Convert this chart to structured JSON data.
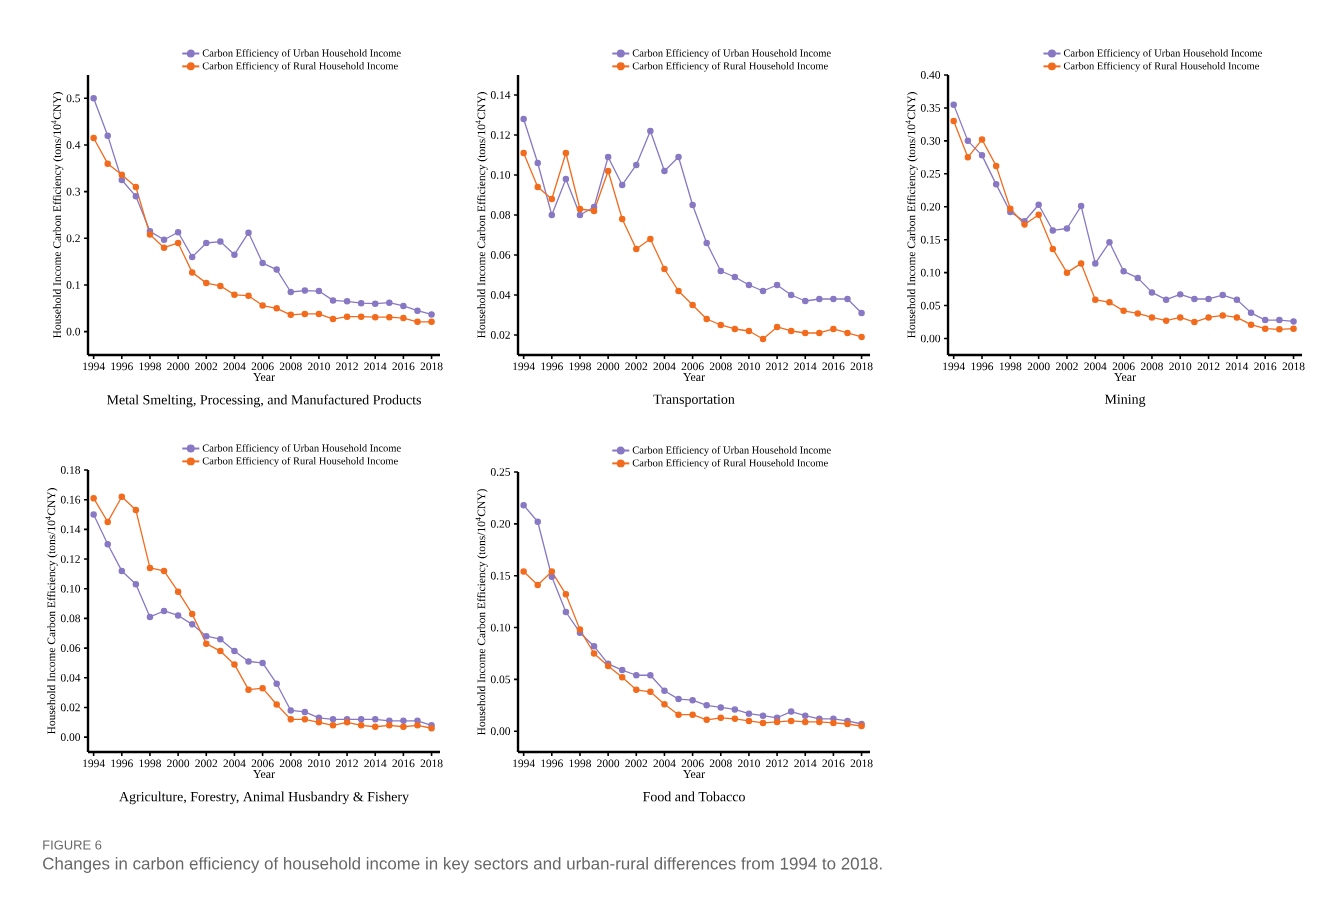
{
  "chart_data": [
    {
      "type": "line",
      "title": "Metal Smelting, Processing, and Manufactured Products",
      "xlabel": "Year",
      "ylabel": "Household Income Carbon Efficiency  (tons/10$^{4}$CNY)",
      "x": [
        1994,
        1995,
        1996,
        1997,
        1998,
        1999,
        2000,
        2001,
        2002,
        2003,
        2004,
        2005,
        2006,
        2007,
        2008,
        2009,
        2010,
        2011,
        2012,
        2013,
        2014,
        2015,
        2016,
        2017,
        2018
      ],
      "xlim": [
        1993.6,
        2018.6
      ],
      "xticks": [
        1994,
        1996,
        1998,
        2000,
        2002,
        2004,
        2006,
        2008,
        2010,
        2012,
        2014,
        2016,
        2018
      ],
      "ylim": [
        -0.05,
        0.55
      ],
      "yticks": [
        {
          "value": 0,
          "label": "0.0"
        },
        0.1,
        0.2,
        0.3,
        0.4,
        0.5
      ],
      "series": [
        {
          "name": "Carbon Efficiency of Urban Household Income",
          "color": "#8878c3",
          "values": [
            0.5,
            0.42,
            0.325,
            0.29,
            0.215,
            0.197,
            0.213,
            0.16,
            0.19,
            0.193,
            0.165,
            0.212,
            0.147,
            0.133,
            0.085,
            0.088,
            0.087,
            0.067,
            0.065,
            0.061,
            0.06,
            0.062,
            0.055,
            0.045,
            0.037
          ]
        },
        {
          "name": "Carbon Efficiency of Rural Household Income",
          "color": "#f26b1d",
          "values": [
            0.415,
            0.36,
            0.336,
            0.31,
            0.208,
            0.18,
            0.19,
            0.127,
            0.104,
            0.098,
            0.079,
            0.077,
            0.056,
            0.05,
            0.036,
            0.038,
            0.038,
            0.027,
            0.032,
            0.032,
            0.031,
            0.031,
            0.029,
            0.021,
            0.021
          ]
        }
      ],
      "legend": "top",
      "marker": "circle",
      "grid": false
    },
    {
      "type": "line",
      "title": "Transportation",
      "xlabel": "Year",
      "ylabel": "Household Income Carbon Efficiency  (tons/10$^{4}$CNY)",
      "x": [
        1994,
        1995,
        1996,
        1997,
        1998,
        1999,
        2000,
        2001,
        2002,
        2003,
        2004,
        2005,
        2006,
        2007,
        2008,
        2009,
        2010,
        2011,
        2012,
        2013,
        2014,
        2015,
        2016,
        2017,
        2018
      ],
      "xlim": [
        1993.6,
        2018.6
      ],
      "xticks": [
        1994,
        1996,
        1998,
        2000,
        2002,
        2004,
        2006,
        2008,
        2010,
        2012,
        2014,
        2016,
        2018
      ],
      "ylim": [
        0.01,
        0.15
      ],
      "yticks": [
        0.02,
        0.04,
        0.06,
        0.08,
        {
          "value": 0.1,
          "label": "0.10"
        },
        0.12,
        0.14
      ],
      "series": [
        {
          "name": "Carbon Efficiency of Urban Household Income",
          "color": "#8878c3",
          "values": [
            0.128,
            0.106,
            0.08,
            0.098,
            0.08,
            0.084,
            0.109,
            0.095,
            0.105,
            0.122,
            0.102,
            0.109,
            0.085,
            0.066,
            0.052,
            0.049,
            0.045,
            0.042,
            0.045,
            0.04,
            0.037,
            0.038,
            0.038,
            0.038,
            0.031
          ]
        },
        {
          "name": "Carbon Efficiency of Rural Household Income",
          "color": "#f26b1d",
          "values": [
            0.111,
            0.094,
            0.088,
            0.111,
            0.083,
            0.082,
            0.102,
            0.078,
            0.063,
            0.068,
            0.053,
            0.042,
            0.035,
            0.028,
            0.025,
            0.023,
            0.022,
            0.018,
            0.024,
            0.022,
            0.021,
            0.021,
            0.023,
            0.021,
            0.019
          ]
        }
      ],
      "legend": "top",
      "marker": "circle",
      "grid": false
    },
    {
      "type": "line",
      "title": "Mining",
      "xlabel": "Year",
      "ylabel": "Household Income Carbon Efficiency  (tons/10$^{4}$CNY)",
      "x": [
        1994,
        1995,
        1996,
        1997,
        1998,
        1999,
        2000,
        2001,
        2002,
        2003,
        2004,
        2005,
        2006,
        2007,
        2008,
        2009,
        2010,
        2011,
        2012,
        2013,
        2014,
        2015,
        2016,
        2017,
        2018
      ],
      "xlim": [
        1993.6,
        2018.6
      ],
      "xticks": [
        1994,
        1996,
        1998,
        2000,
        2002,
        2004,
        2006,
        2008,
        2010,
        2012,
        2014,
        2016,
        2018
      ],
      "ylim": [
        -0.025,
        0.4
      ],
      "yticks": [
        {
          "value": 0,
          "label": "0.00"
        },
        0.05,
        {
          "value": 0.1,
          "label": "0.10"
        },
        0.15,
        {
          "value": 0.2,
          "label": "0.20"
        },
        0.25,
        {
          "value": 0.3,
          "label": "0.30"
        },
        0.35,
        {
          "value": 0.4,
          "label": "0.40"
        }
      ],
      "series": [
        {
          "name": "Carbon Efficiency of Urban Household Income",
          "color": "#8878c3",
          "values": [
            0.355,
            0.3,
            0.278,
            0.234,
            0.192,
            0.178,
            0.203,
            0.164,
            0.167,
            0.201,
            0.114,
            0.146,
            0.102,
            0.092,
            0.07,
            0.059,
            0.067,
            0.06,
            0.06,
            0.066,
            0.059,
            0.039,
            0.028,
            0.028,
            0.026
          ]
        },
        {
          "name": "Carbon Efficiency of Rural Household Income",
          "color": "#f26b1d",
          "values": [
            0.33,
            0.275,
            0.302,
            0.262,
            0.197,
            0.173,
            0.188,
            0.136,
            0.1,
            0.114,
            0.059,
            0.055,
            0.042,
            0.038,
            0.032,
            0.027,
            0.032,
            0.025,
            0.032,
            0.035,
            0.032,
            0.021,
            0.015,
            0.014,
            0.015
          ]
        }
      ],
      "legend": "top",
      "marker": "circle",
      "grid": false
    },
    {
      "type": "line",
      "title": "Agriculture, Forestry, Animal Husbandry & Fishery",
      "xlabel": "Year",
      "ylabel": "Household Income Carbon Efficiency  (tons/10$^{4}$CNY)",
      "x": [
        1994,
        1995,
        1996,
        1997,
        1998,
        1999,
        2000,
        2001,
        2002,
        2003,
        2004,
        2005,
        2006,
        2007,
        2008,
        2009,
        2010,
        2011,
        2012,
        2013,
        2014,
        2015,
        2016,
        2017,
        2018
      ],
      "xlim": [
        1993.6,
        2018.6
      ],
      "xticks": [
        1994,
        1996,
        1998,
        2000,
        2002,
        2004,
        2006,
        2008,
        2010,
        2012,
        2014,
        2016,
        2018
      ],
      "ylim": [
        -0.01,
        0.18
      ],
      "yticks": [
        {
          "value": 0,
          "label": "0.00"
        },
        0.02,
        0.04,
        0.06,
        0.08,
        {
          "value": 0.1,
          "label": "0.10"
        },
        0.12,
        0.14,
        0.16,
        0.18
      ],
      "series": [
        {
          "name": "Carbon Efficiency of Urban Household Income",
          "color": "#8878c3",
          "values": [
            0.15,
            0.13,
            0.112,
            0.103,
            0.081,
            0.085,
            0.082,
            0.076,
            0.068,
            0.066,
            0.058,
            0.051,
            0.05,
            0.036,
            0.018,
            0.017,
            0.013,
            0.012,
            0.012,
            0.012,
            0.012,
            0.011,
            0.011,
            0.011,
            0.008
          ]
        },
        {
          "name": "Carbon Efficiency of Rural Household Income",
          "color": "#f26b1d",
          "values": [
            0.161,
            0.145,
            0.162,
            0.153,
            0.114,
            0.112,
            0.098,
            0.083,
            0.063,
            0.058,
            0.049,
            0.032,
            0.033,
            0.022,
            0.012,
            0.012,
            0.01,
            0.008,
            0.01,
            0.008,
            0.007,
            0.008,
            0.007,
            0.008,
            0.006
          ]
        }
      ],
      "legend": "top",
      "marker": "circle",
      "grid": false
    },
    {
      "type": "line",
      "title": "Food and Tobacco",
      "xlabel": "Year",
      "ylabel": "Household Income Carbon Efficiency  (tons/10$^{4}$CNY)",
      "x": [
        1994,
        1995,
        1996,
        1997,
        1998,
        1999,
        2000,
        2001,
        2002,
        2003,
        2004,
        2005,
        2006,
        2007,
        2008,
        2009,
        2010,
        2011,
        2012,
        2013,
        2014,
        2015,
        2016,
        2017,
        2018
      ],
      "xlim": [
        1993.6,
        2018.6
      ],
      "xticks": [
        1994,
        1996,
        1998,
        2000,
        2002,
        2004,
        2006,
        2008,
        2010,
        2012,
        2014,
        2016,
        2018
      ],
      "ylim": [
        -0.02,
        0.25
      ],
      "yticks": [
        {
          "value": 0,
          "label": "0.00"
        },
        0.05,
        {
          "value": 0.1,
          "label": "0.10"
        },
        0.15,
        {
          "value": 0.2,
          "label": "0.20"
        },
        0.25
      ],
      "series": [
        {
          "name": "Carbon Efficiency of Urban Household Income",
          "color": "#8878c3",
          "values": [
            0.218,
            0.202,
            0.149,
            0.115,
            0.095,
            0.082,
            0.065,
            0.059,
            0.054,
            0.054,
            0.039,
            0.031,
            0.03,
            0.025,
            0.023,
            0.021,
            0.017,
            0.015,
            0.013,
            0.019,
            0.015,
            0.012,
            0.012,
            0.01,
            0.007
          ]
        },
        {
          "name": "Carbon Efficiency of Rural Household Income",
          "color": "#f26b1d",
          "values": [
            0.154,
            0.141,
            0.154,
            0.132,
            0.098,
            0.075,
            0.063,
            0.052,
            0.04,
            0.038,
            0.026,
            0.016,
            0.016,
            0.011,
            0.013,
            0.012,
            0.01,
            0.008,
            0.009,
            0.01,
            0.009,
            0.009,
            0.008,
            0.007,
            0.005
          ]
        }
      ],
      "legend": "top",
      "marker": "circle",
      "grid": false,
      "annotations": [
        "FIGURE 6",
        "Changes in carbon efficiency of household income in key sectors and urban-rural differences from 1994 to 2018."
      ]
    }
  ]
}
